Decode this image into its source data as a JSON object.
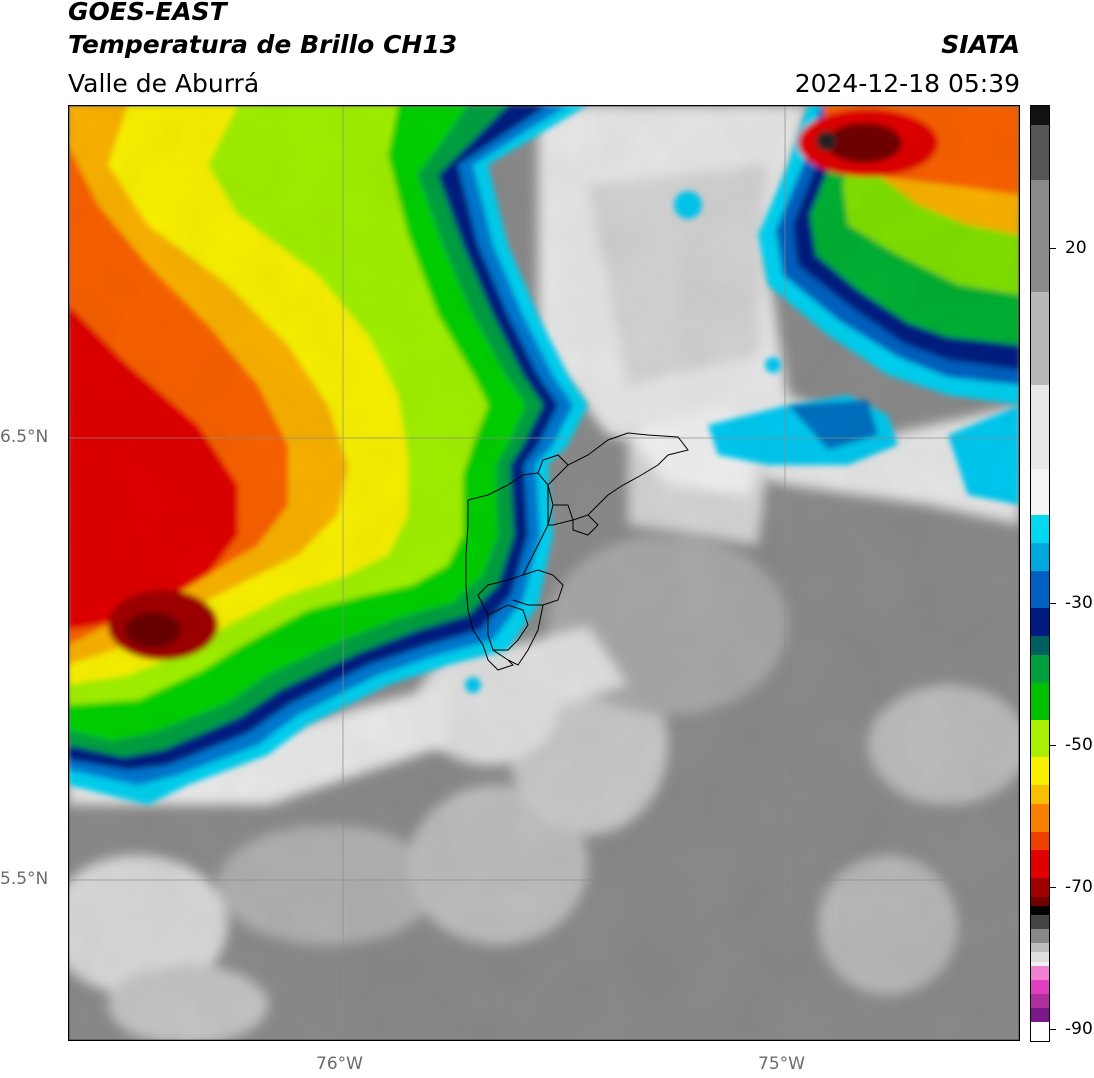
{
  "header": {
    "satellite": "GOES-EAST",
    "product": "Temperatura de Brillo CH13",
    "region": "Valle de Aburrá",
    "agency": "SIATA",
    "timestamp": "2024-12-18 05:39"
  },
  "map": {
    "lat_labels": [
      "6.5°N",
      "5.5°N"
    ],
    "lon_labels": [
      "76°W",
      "75°W"
    ],
    "extent": {
      "lon_min": -76.62,
      "lon_max": -74.55,
      "lat_min": 5.2,
      "lat_max": 7.25
    },
    "field": "brightness_temperature_celsius"
  },
  "colorbar": {
    "tick_labels": [
      "20",
      "-30",
      "-50",
      "-70",
      "-90"
    ],
    "colors": {
      "gray_warm": "#888888",
      "white": "#f2f2f2",
      "cyan": "#00d8f0",
      "blue": "#0060c0",
      "navy": "#001a80",
      "green": "#00c000",
      "lime": "#a8f000",
      "yellow": "#f8f000",
      "orange": "#f88000",
      "red": "#e00000",
      "darkred": "#700000",
      "magenta": "#e040c0",
      "purple": "#7a1a8a"
    }
  }
}
